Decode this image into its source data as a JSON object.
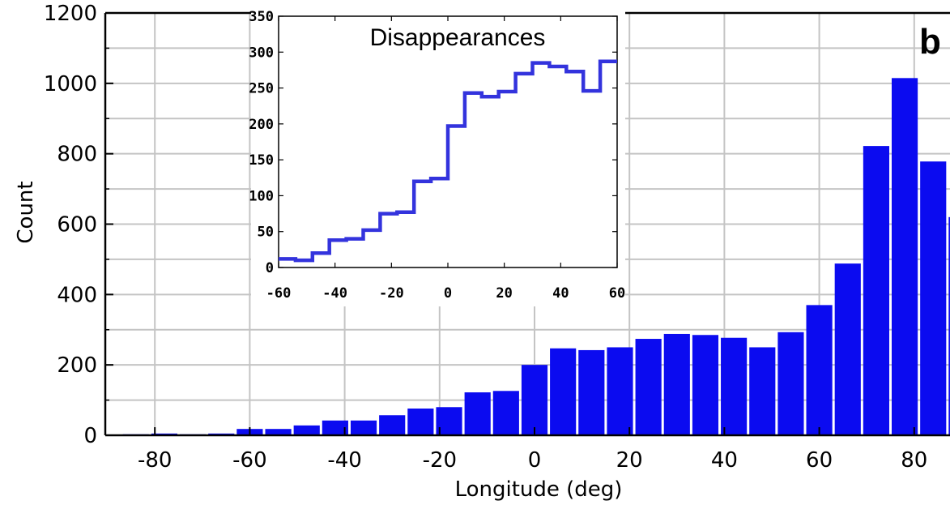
{
  "panel_label": "b",
  "colors": {
    "bar": "#0b0bf0",
    "inset_line": "#3333dd",
    "grid": "#c4c4c4",
    "axis": "#000000",
    "background": "#ffffff"
  },
  "chart_data": [
    {
      "type": "bar",
      "role": "main",
      "title": "",
      "xlabel": "Longitude (deg)",
      "ylabel": "Count",
      "xlim": [
        -90,
        90
      ],
      "ylim": [
        0,
        1200
      ],
      "bin_width": 6,
      "grid": true,
      "x_ticks": [
        {
          "value": -80,
          "label": "-80"
        },
        {
          "value": -60,
          "label": "-60"
        },
        {
          "value": -40,
          "label": "-40"
        },
        {
          "value": -20,
          "label": "-20"
        },
        {
          "value": 0,
          "label": "0"
        },
        {
          "value": 20,
          "label": "20"
        },
        {
          "value": 40,
          "label": "40"
        },
        {
          "value": 60,
          "label": "60"
        },
        {
          "value": 80,
          "label": "80"
        }
      ],
      "y_ticks": [
        {
          "value": 0,
          "label": "0"
        },
        {
          "value": 200,
          "label": "200"
        },
        {
          "value": 400,
          "label": "400"
        },
        {
          "value": 600,
          "label": "600"
        },
        {
          "value": 800,
          "label": "800"
        },
        {
          "value": 1000,
          "label": "1000"
        },
        {
          "value": 1200,
          "label": "1200"
        }
      ],
      "bin_centers": [
        -84,
        -78,
        -72,
        -66,
        -60,
        -54,
        -48,
        -42,
        -36,
        -30,
        -24,
        -18,
        -12,
        -6,
        0,
        6,
        12,
        18,
        24,
        30,
        36,
        42,
        48,
        54,
        60,
        66,
        72,
        78,
        84,
        90
      ],
      "values": [
        3,
        5,
        3,
        5,
        18,
        18,
        28,
        42,
        42,
        57,
        76,
        80,
        122,
        126,
        200,
        247,
        242,
        250,
        274,
        288,
        285,
        277,
        250,
        293,
        370,
        488,
        822,
        1015,
        778,
        620
      ]
    },
    {
      "type": "line",
      "role": "inset",
      "style": "step",
      "title": "Disappearances",
      "xlim": [
        -60,
        60
      ],
      "ylim": [
        0,
        350
      ],
      "grid": false,
      "x_ticks": [
        {
          "value": -60,
          "label": "-60"
        },
        {
          "value": -40,
          "label": "-40"
        },
        {
          "value": -20,
          "label": "-20"
        },
        {
          "value": 0,
          "label": "0"
        },
        {
          "value": 20,
          "label": "20"
        },
        {
          "value": 40,
          "label": "40"
        },
        {
          "value": 60,
          "label": "60"
        }
      ],
      "y_ticks": [
        {
          "value": 0,
          "label": "0"
        },
        {
          "value": 50,
          "label": "50"
        },
        {
          "value": 100,
          "label": "100"
        },
        {
          "value": 150,
          "label": "150"
        },
        {
          "value": 200,
          "label": "200"
        },
        {
          "value": 250,
          "label": "250"
        },
        {
          "value": 300,
          "label": "300"
        },
        {
          "value": 350,
          "label": "350"
        }
      ],
      "bin_edges": [
        -60,
        -54,
        -48,
        -42,
        -36,
        -30,
        -24,
        -18,
        -12,
        -6,
        0,
        6,
        12,
        18,
        24,
        30,
        36,
        42,
        48,
        54,
        60
      ],
      "values": [
        12,
        10,
        20,
        38,
        40,
        52,
        75,
        77,
        120,
        124,
        197,
        243,
        238,
        245,
        270,
        285,
        280,
        273,
        246,
        287
      ]
    }
  ]
}
